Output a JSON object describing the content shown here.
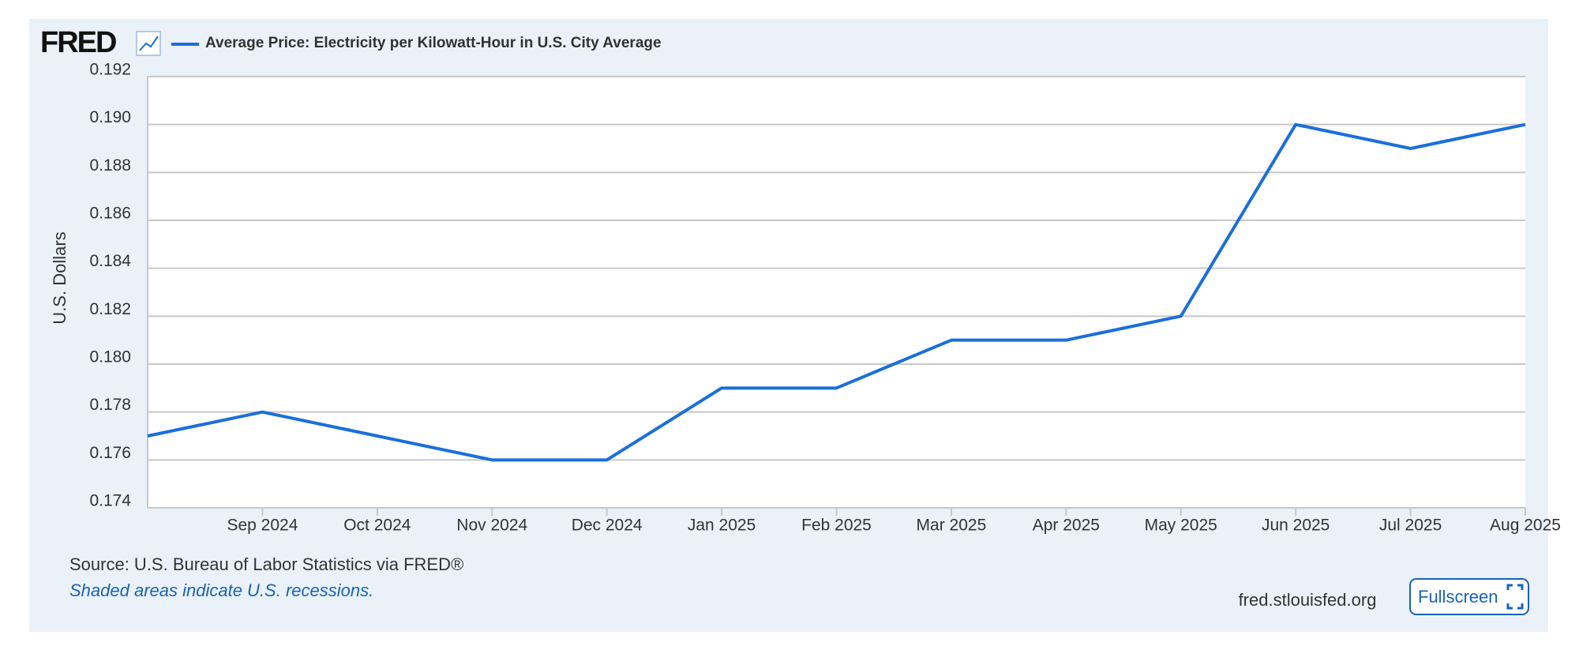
{
  "logo": "FRED",
  "chart_data": {
    "type": "line",
    "series": [
      {
        "name": "Average Price: Electricity per Kilowatt-Hour in U.S. City Average",
        "color": "#1a6fdb",
        "values": [
          0.177,
          0.178,
          0.177,
          0.176,
          0.176,
          0.179,
          0.179,
          0.181,
          0.181,
          0.182,
          0.19,
          0.189,
          0.19
        ]
      }
    ],
    "categories": [
      null,
      "Sep 2024",
      "Oct 2024",
      "Nov 2024",
      "Dec 2024",
      "Jan 2025",
      "Feb 2025",
      "Mar 2025",
      "Apr 2025",
      "May 2025",
      "Jun 2025",
      "Jul 2025",
      "Aug 2025"
    ],
    "y_label": "U.S. Dollars",
    "ylim": [
      0.174,
      0.192
    ],
    "yticks": [
      0.174,
      0.176,
      0.178,
      {
        "value": 0.18,
        "label": "0.180"
      },
      0.182,
      0.184,
      0.186,
      0.188,
      {
        "value": 0.19,
        "label": "0.190"
      },
      0.192
    ],
    "grid": true
  },
  "source": "Source: U.S. Bureau of Labor Statistics via FRED®",
  "note": "Shaded areas indicate U.S. recessions.",
  "site": "fred.stlouisfed.org",
  "button": "Fullscreen"
}
